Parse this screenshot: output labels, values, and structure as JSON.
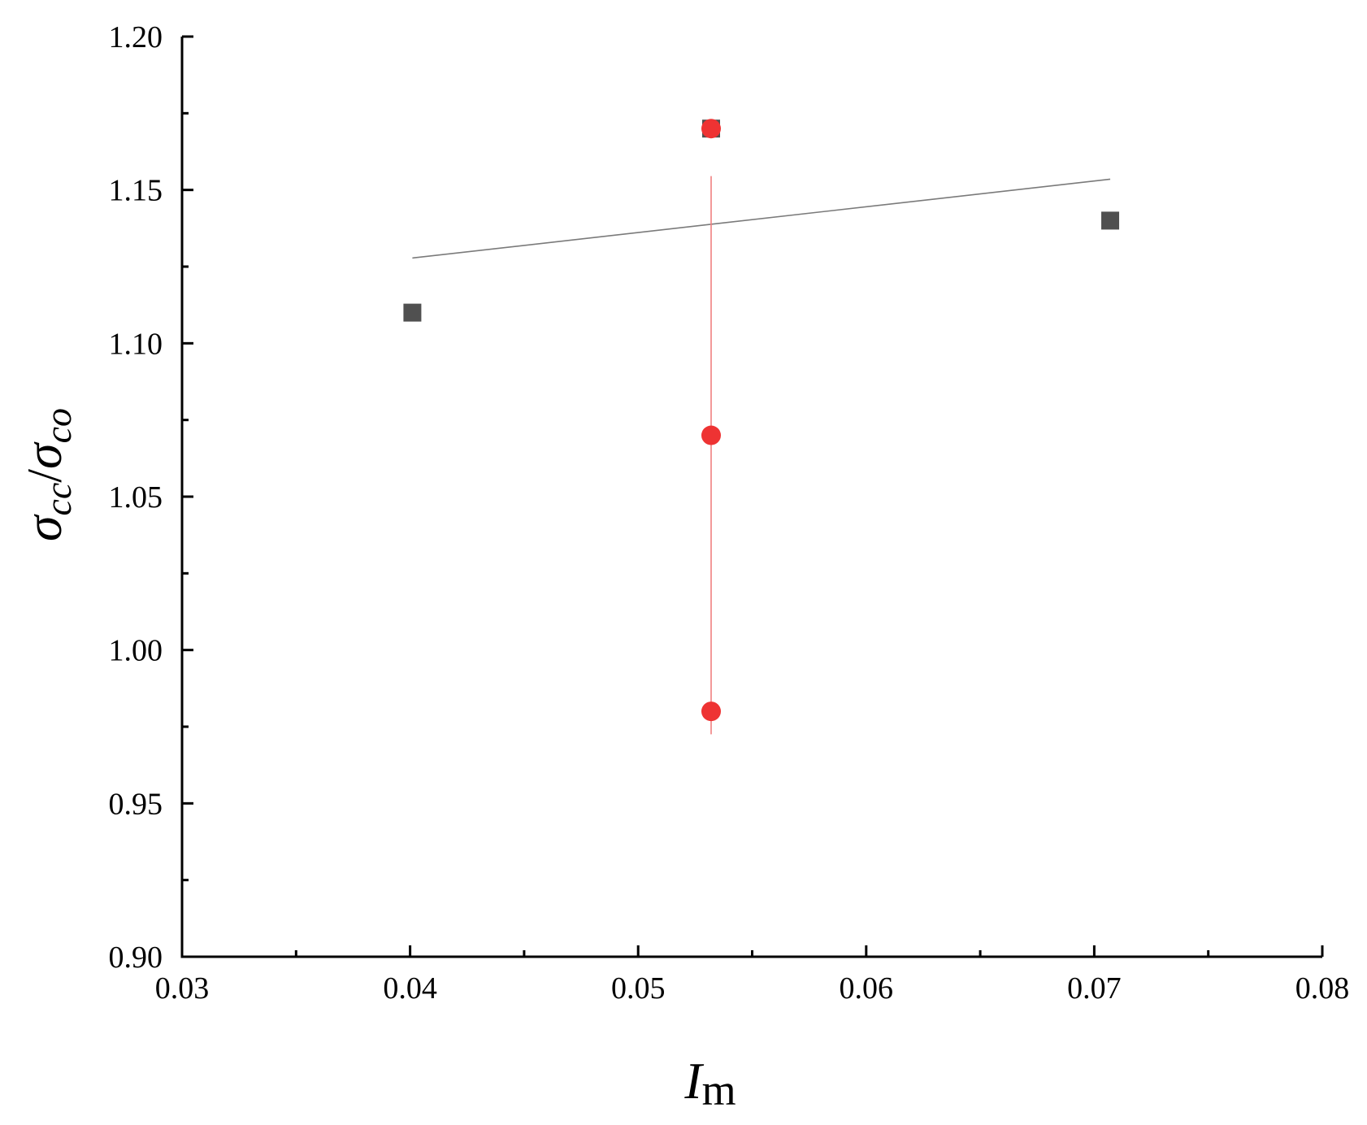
{
  "chart_data": {
    "type": "scatter",
    "xlabel": {
      "main": "I",
      "sub": "m"
    },
    "ylabel": {
      "sym1": "σ",
      "sub1": "cc",
      "sep": "/",
      "sym2": "σ",
      "sub2": "co"
    },
    "xlim": [
      0.03,
      0.08
    ],
    "ylim": [
      0.9,
      1.2
    ],
    "x_ticks": [
      {
        "value": 0.03,
        "label": "0.03"
      },
      {
        "value": 0.04,
        "label": "0.04"
      },
      {
        "value": 0.05,
        "label": "0.05"
      },
      {
        "value": 0.06,
        "label": "0.06"
      },
      {
        "value": 0.07,
        "label": "0.07"
      },
      {
        "value": 0.08,
        "label": "0.08"
      }
    ],
    "x_minor_ticks": [
      0.035,
      0.045,
      0.055,
      0.065,
      0.075
    ],
    "y_ticks": [
      {
        "value": 0.9,
        "label": "0.90"
      },
      {
        "value": 0.95,
        "label": "0.95"
      },
      {
        "value": 1.0,
        "label": "1.00"
      },
      {
        "value": 1.05,
        "label": "1.05"
      },
      {
        "value": 1.1,
        "label": "1.10"
      },
      {
        "value": 1.15,
        "label": "1.15"
      },
      {
        "value": 1.2,
        "label": "1.20"
      }
    ],
    "y_minor_ticks": [
      0.925,
      0.975,
      1.025,
      1.075,
      1.125,
      1.175
    ],
    "grid": false,
    "legend": "none",
    "series": [
      {
        "marker": "square",
        "color": "#505050",
        "points": [
          {
            "x": 0.0401,
            "y": 1.11
          },
          {
            "x": 0.0532,
            "y": 1.17
          },
          {
            "x": 0.0707,
            "y": 1.14
          }
        ],
        "fit": {
          "color": "#7a7a7a",
          "from": {
            "x": 0.0401,
            "y": 1.1278
          },
          "to": {
            "x": 0.0707,
            "y": 1.1535
          }
        }
      },
      {
        "marker": "circle",
        "color": "#ee3333",
        "points": [
          {
            "x": 0.0532,
            "y": 1.17
          },
          {
            "x": 0.0532,
            "y": 1.07
          },
          {
            "x": 0.0532,
            "y": 0.98
          }
        ],
        "fit": {
          "color": "#f08080",
          "from": {
            "x": 0.0532,
            "y": 1.1545
          },
          "to": {
            "x": 0.0532,
            "y": 0.9725
          }
        }
      }
    ]
  }
}
